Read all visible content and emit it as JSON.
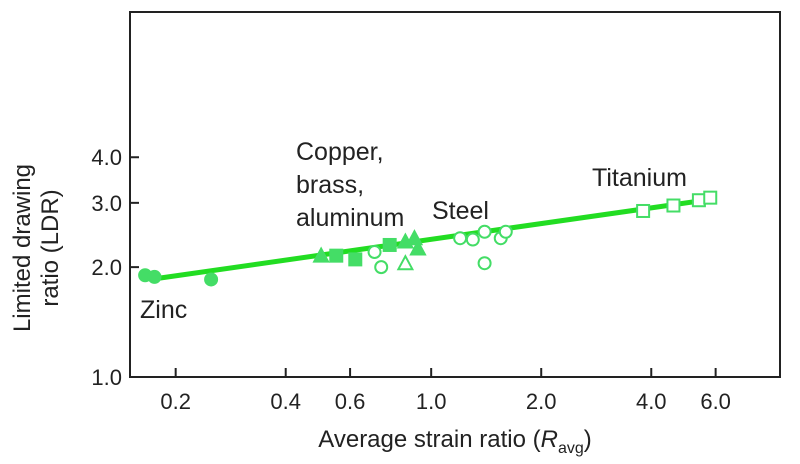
{
  "chart_data": {
    "type": "scatter",
    "x_scale": "log",
    "y_scale": "log",
    "xlim": [
      0.15,
      9.0
    ],
    "ylim": [
      1.0,
      10.0
    ],
    "xlabel_main": "Average strain ratio (",
    "xlabel_var": "R",
    "xlabel_sub": "avg",
    "xlabel_close": ")",
    "ylabel_line1": "Limited drawing",
    "ylabel_line2": "ratio (LDR)",
    "x_ticks": [
      {
        "value": 0.2,
        "label": "0.2"
      },
      {
        "value": 0.4,
        "label": "0.4"
      },
      {
        "value": 0.6,
        "label": "0.6"
      },
      {
        "value": 1.0,
        "label": "1.0"
      },
      {
        "value": 2.0,
        "label": "2.0"
      },
      {
        "value": 4.0,
        "label": "4.0"
      },
      {
        "value": 6.0,
        "label": "6.0"
      }
    ],
    "y_ticks": [
      {
        "value": 1.0,
        "label": "1.0"
      },
      {
        "value": 2.0,
        "label": "2.0"
      },
      {
        "value": 3.0,
        "label": "3.0"
      },
      {
        "value": 4.0,
        "label": "4.0"
      }
    ],
    "trend_line": {
      "x": [
        0.17,
        6.0
      ],
      "y": [
        1.85,
        3.08
      ],
      "color": "#22dd22"
    },
    "groups": [
      {
        "label_lines": [
          "Zinc"
        ],
        "points": [
          {
            "x": 0.165,
            "y": 1.9,
            "marker": "circle",
            "filled": true
          },
          {
            "x": 0.175,
            "y": 1.88,
            "marker": "circle",
            "filled": true
          },
          {
            "x": 0.25,
            "y": 1.85,
            "marker": "circle",
            "filled": true
          }
        ]
      },
      {
        "label_lines": [
          "Copper,",
          "brass,",
          "aluminum"
        ],
        "points": [
          {
            "x": 0.5,
            "y": 2.15,
            "marker": "triangle",
            "filled": true
          },
          {
            "x": 0.55,
            "y": 2.15,
            "marker": "square",
            "filled": true
          },
          {
            "x": 0.62,
            "y": 2.1,
            "marker": "square",
            "filled": true
          },
          {
            "x": 0.7,
            "y": 2.2,
            "marker": "circle",
            "filled": false
          },
          {
            "x": 0.73,
            "y": 2.0,
            "marker": "circle",
            "filled": false
          },
          {
            "x": 0.77,
            "y": 2.3,
            "marker": "square",
            "filled": true
          },
          {
            "x": 0.85,
            "y": 2.05,
            "marker": "triangle",
            "filled": false
          },
          {
            "x": 0.85,
            "y": 2.35,
            "marker": "triangle",
            "filled": true
          },
          {
            "x": 0.9,
            "y": 2.4,
            "marker": "triangle",
            "filled": true
          },
          {
            "x": 0.92,
            "y": 2.25,
            "marker": "triangle",
            "filled": true
          }
        ]
      },
      {
        "label_lines": [
          "Steel"
        ],
        "points": [
          {
            "x": 1.2,
            "y": 2.4,
            "marker": "circle",
            "filled": false
          },
          {
            "x": 1.3,
            "y": 2.38,
            "marker": "circle",
            "filled": false
          },
          {
            "x": 1.4,
            "y": 2.5,
            "marker": "circle",
            "filled": false
          },
          {
            "x": 1.4,
            "y": 2.05,
            "marker": "circle",
            "filled": false
          },
          {
            "x": 1.55,
            "y": 2.4,
            "marker": "circle",
            "filled": false
          },
          {
            "x": 1.6,
            "y": 2.5,
            "marker": "circle",
            "filled": false
          }
        ]
      },
      {
        "label_lines": [
          "Titanium"
        ],
        "points": [
          {
            "x": 3.8,
            "y": 2.85,
            "marker": "square",
            "filled": false
          },
          {
            "x": 4.6,
            "y": 2.95,
            "marker": "square",
            "filled": false
          },
          {
            "x": 5.4,
            "y": 3.05,
            "marker": "square",
            "filled": false
          },
          {
            "x": 5.8,
            "y": 3.1,
            "marker": "square",
            "filled": false
          }
        ]
      }
    ],
    "marker_color": "#44dd66",
    "grid": false
  }
}
